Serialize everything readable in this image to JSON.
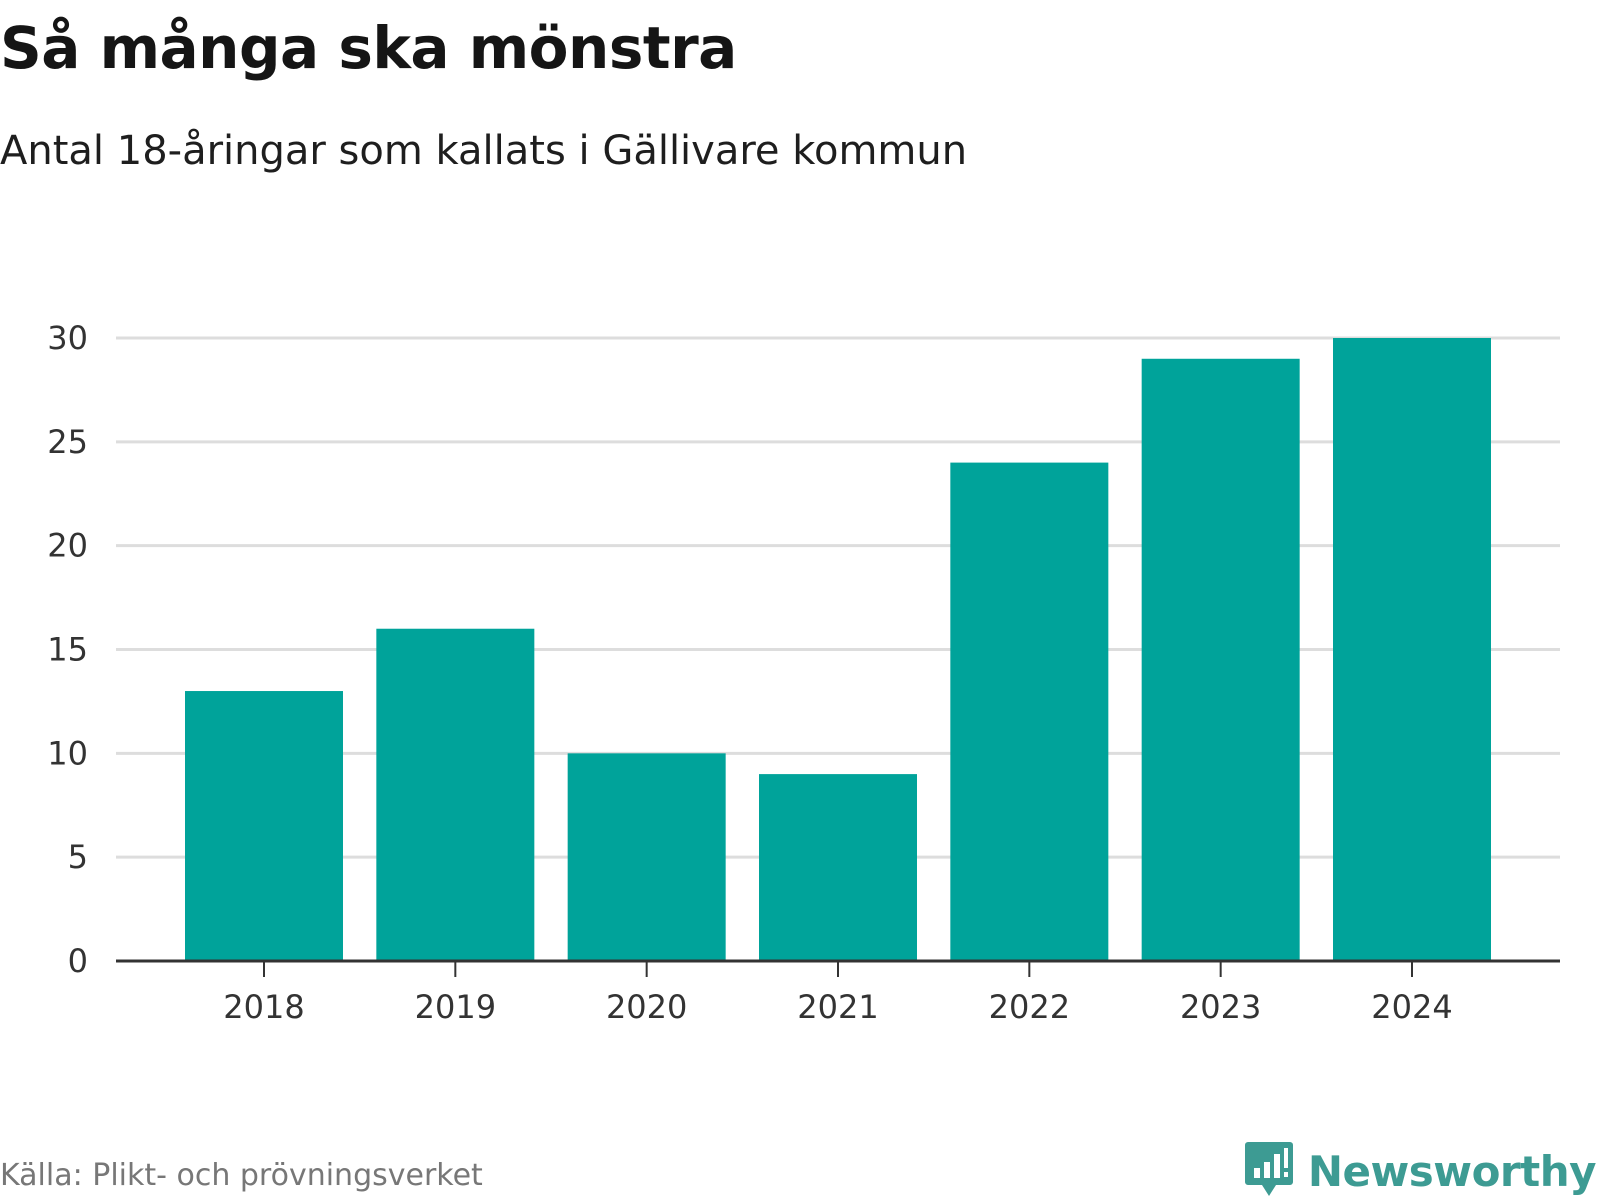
{
  "header": {
    "title": "Så många ska mönstra",
    "subtitle": "Antal 18-åringar som kallats i Gällivare kommun"
  },
  "footer": {
    "source": "Källa: Plikt- och prövningsverket",
    "brand": "Newsworthy",
    "brand_icon": "bar-chart-speech-bubble-icon"
  },
  "colors": {
    "bar": "#00a39a",
    "grid": "#dddddd",
    "axis": "#333333",
    "brand": "#3d9b93"
  },
  "chart_data": {
    "type": "bar",
    "categories": [
      "2018",
      "2019",
      "2020",
      "2021",
      "2022",
      "2023",
      "2024"
    ],
    "values": [
      13,
      16,
      10,
      9,
      24,
      29,
      30
    ],
    "ylim": [
      0,
      30
    ],
    "yticks": [
      0,
      5,
      10,
      15,
      20,
      25,
      30
    ],
    "grid": true,
    "legend": "none"
  }
}
